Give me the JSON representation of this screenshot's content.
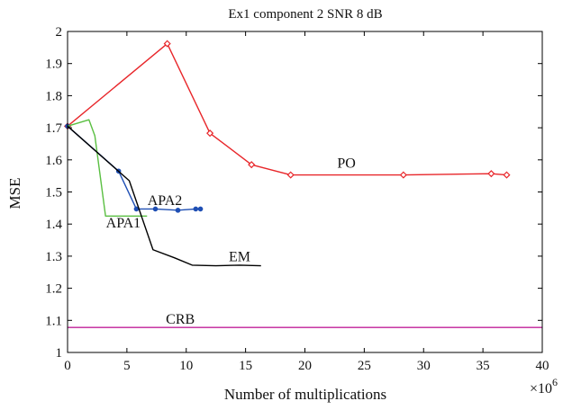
{
  "chart_data": {
    "type": "line",
    "title": "Ex1 component 2 SNR 8 dB",
    "xlabel": "Number of multiplications",
    "ylabel": "MSE",
    "x_multiplier_label": "×10",
    "x_multiplier_exp": "6",
    "xlim": [
      0,
      40
    ],
    "ylim": [
      1.0,
      2.0
    ],
    "xticks": [
      0,
      5,
      10,
      15,
      20,
      25,
      30,
      35,
      40
    ],
    "yticks": [
      1,
      1.1,
      1.2,
      1.3,
      1.4,
      1.5,
      1.6,
      1.7,
      1.8,
      1.9,
      2
    ],
    "xtick_labels": [
      "0",
      "5",
      "10",
      "15",
      "20",
      "25",
      "30",
      "35",
      "40"
    ],
    "ytick_labels": [
      "1",
      "1.1",
      "1.2",
      "1.3",
      "1.4",
      "1.5",
      "1.6",
      "1.7",
      "1.8",
      "1.9",
      "2"
    ],
    "grid": false,
    "series": [
      {
        "name": "PO",
        "color": "#e8262a",
        "marker": "diamond",
        "label_at": [
          23.5,
          1.575
        ],
        "x": [
          0,
          8.4,
          12.0,
          15.5,
          18.8,
          28.3,
          35.7,
          37.0
        ],
        "y": [
          1.705,
          1.962,
          1.683,
          1.585,
          1.553,
          1.553,
          1.557,
          1.553
        ]
      },
      {
        "name": "APA2",
        "color": "#1f4fb4",
        "marker": "dot",
        "label_at": [
          8.2,
          1.46
        ],
        "x": [
          0,
          4.3,
          5.8,
          7.4,
          9.3,
          10.8,
          11.2
        ],
        "y": [
          1.705,
          1.565,
          1.447,
          1.447,
          1.443,
          1.447,
          1.447
        ]
      },
      {
        "name": "APA1",
        "color": "#5abf42",
        "marker": "none",
        "label_at": [
          4.7,
          1.39
        ],
        "x": [
          0,
          1.8,
          2.3,
          3.2,
          5.8,
          6.7
        ],
        "y": [
          1.705,
          1.725,
          1.675,
          1.425,
          1.425,
          1.425
        ]
      },
      {
        "name": "EM",
        "color": "#000000",
        "marker": "none",
        "label_at": [
          14.5,
          1.285
        ],
        "x": [
          0,
          5.2,
          7.2,
          9.0,
          10.5,
          12.5,
          14.5,
          16.3
        ],
        "y": [
          1.705,
          1.535,
          1.32,
          1.295,
          1.272,
          1.27,
          1.272,
          1.27
        ]
      },
      {
        "name": "CRB",
        "color": "#c0209a",
        "marker": "none",
        "label_at": [
          9.5,
          1.09
        ],
        "x": [
          0,
          40
        ],
        "y": [
          1.078,
          1.078
        ]
      }
    ]
  }
}
